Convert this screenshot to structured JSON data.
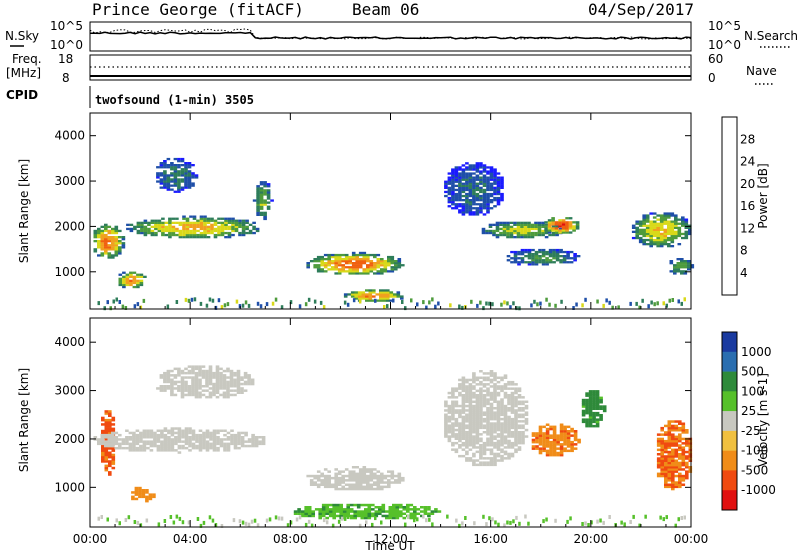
{
  "header": {
    "station": "Prince George (fitACF)",
    "beam": "Beam 06",
    "date": "04/Sep/2017"
  },
  "strips": {
    "nsky_label": "N.Sky",
    "nsearch_label": "N.Search",
    "freq_label_1": "Freq.",
    "freq_label_2": "[MHz]",
    "nave_label": "Nave",
    "cpid_label": "CPID",
    "cpid_text": "twofsound (1-min) 3505",
    "noise_ticks_left": [
      "10^5",
      "10^0"
    ],
    "noise_ticks_right": [
      "10^5",
      "10^0"
    ],
    "freq_ticks_left": [
      "18",
      "8"
    ],
    "nave_ticks_right": [
      "60",
      "0"
    ]
  },
  "colors": {
    "power_scale": [
      "#1a1aff",
      "#1f4fa8",
      "#2e7d5a",
      "#4e9b3c",
      "#d9d919",
      "#f0a020",
      "#f06010",
      "#e01010"
    ],
    "velocity_scale": [
      "#e01010",
      "#f04a10",
      "#f08c18",
      "#f0c040",
      "#c8c8c0",
      "#56c02a",
      "#2e8a3a",
      "#2a6eb0",
      "#1a3aa0"
    ],
    "groundscatter": "#c8c8c0"
  },
  "chart_data": [
    {
      "type": "heatmap",
      "name": "power",
      "xlabel": "",
      "ylabel": "Slant Range [km]",
      "x_ticks": [
        "00:00",
        "04:00",
        "08:00",
        "12:00",
        "16:00",
        "20:00",
        "00:00"
      ],
      "xlim_hours": [
        0,
        24
      ],
      "y_ticks": [
        1000,
        2000,
        3000,
        4000
      ],
      "ylim": [
        180,
        4500
      ],
      "colorbar_label": "Power [dB]",
      "colorbar_ticks": [
        4,
        8,
        12,
        16,
        20,
        24,
        28
      ],
      "colorbar_range": [
        0,
        32
      ],
      "echo_regions": [
        {
          "t": [
            0.0,
            1.3
          ],
          "r": [
            1250,
            2050
          ],
          "peak_db": 26
        },
        {
          "t": [
            1.0,
            2.2
          ],
          "r": [
            600,
            1000
          ],
          "peak_db": 24
        },
        {
          "t": [
            1.3,
            6.8
          ],
          "r": [
            1700,
            2200
          ],
          "peak_db": 22
        },
        {
          "t": [
            2.5,
            4.2
          ],
          "r": [
            2700,
            3500
          ],
          "peak_db": 10
        },
        {
          "t": [
            6.5,
            7.2
          ],
          "r": [
            2100,
            3000
          ],
          "peak_db": 16
        },
        {
          "t": [
            8.5,
            12.5
          ],
          "r": [
            900,
            1400
          ],
          "peak_db": 26
        },
        {
          "t": [
            10.0,
            12.5
          ],
          "r": [
            300,
            600
          ],
          "peak_db": 24
        },
        {
          "t": [
            14.0,
            16.5
          ],
          "r": [
            2200,
            3400
          ],
          "peak_db": 8
        },
        {
          "t": [
            15.5,
            19.0
          ],
          "r": [
            1700,
            2100
          ],
          "peak_db": 18
        },
        {
          "t": [
            16.5,
            19.5
          ],
          "r": [
            1100,
            1500
          ],
          "peak_db": 12
        },
        {
          "t": [
            18.0,
            19.5
          ],
          "r": [
            1800,
            2200
          ],
          "peak_db": 28
        },
        {
          "t": [
            21.5,
            24.0
          ],
          "r": [
            1500,
            2300
          ],
          "peak_db": 20
        },
        {
          "t": [
            23.0,
            24.0
          ],
          "r": [
            900,
            1300
          ],
          "peak_db": 14
        }
      ]
    },
    {
      "type": "heatmap",
      "name": "velocity",
      "xlabel": "Time UT",
      "ylabel": "Slant Range [km]",
      "x_ticks": [
        "00:00",
        "04:00",
        "08:00",
        "12:00",
        "16:00",
        "20:00",
        "00:00"
      ],
      "xlim_hours": [
        0,
        24
      ],
      "y_ticks": [
        1000,
        2000,
        3000,
        4000
      ],
      "ylim": [
        180,
        4500
      ],
      "colorbar_label": "Velocity [m s-1]",
      "colorbar_ticks": [
        1000,
        500,
        100,
        25,
        -25,
        -100,
        -500,
        -1000
      ],
      "echo_regions": [
        {
          "t": [
            0.3,
            1.0
          ],
          "r": [
            1200,
            2600
          ],
          "v": -600
        },
        {
          "t": [
            1.5,
            2.5
          ],
          "r": [
            650,
            1000
          ],
          "v": -300
        },
        {
          "t": [
            0.0,
            7.0
          ],
          "r": [
            1700,
            2200
          ],
          "v": 0
        },
        {
          "t": [
            2.5,
            6.5
          ],
          "r": [
            2800,
            3500
          ],
          "v": 0
        },
        {
          "t": [
            8.5,
            12.5
          ],
          "r": [
            900,
            1400
          ],
          "v": 0
        },
        {
          "t": [
            8.0,
            14.0
          ],
          "r": [
            300,
            650
          ],
          "v": 80
        },
        {
          "t": [
            14.0,
            17.5
          ],
          "r": [
            1400,
            3400
          ],
          "v": 0
        },
        {
          "t": [
            17.5,
            19.5
          ],
          "r": [
            1600,
            2300
          ],
          "v": -400
        },
        {
          "t": [
            19.5,
            20.5
          ],
          "r": [
            2200,
            3000
          ],
          "v": 150
        },
        {
          "t": [
            22.5,
            24.0
          ],
          "r": [
            900,
            2400
          ],
          "v": -500
        }
      ]
    }
  ]
}
